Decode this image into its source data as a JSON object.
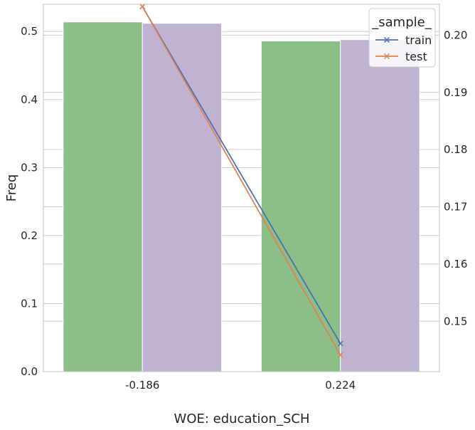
{
  "chart_data": {
    "type": "bar",
    "categories": [
      "-0.186",
      "0.224"
    ],
    "xlabel": "WOE: education_SCH",
    "ylabel": "Freq",
    "ylim": [
      0,
      0.54
    ],
    "yticks": [
      "0.0",
      "0.1",
      "0.2",
      "0.3",
      "0.4",
      "0.5"
    ],
    "bar_series": [
      {
        "values": [
          0.514,
          0.486
        ],
        "color": "#8bbf87"
      },
      {
        "values": [
          0.512,
          0.488
        ],
        "color": "#c0b3d1"
      }
    ],
    "y2lim": [
      0.1412,
      0.2054
    ],
    "y2ticks": [
      "0.15",
      "0.16",
      "0.17",
      "0.18",
      "0.19",
      "0.20"
    ],
    "line_series": [
      {
        "name": "train",
        "values": [
          0.205,
          0.1461
        ],
        "color": "#4c72b0"
      },
      {
        "name": "test",
        "values": [
          0.205,
          0.1441
        ],
        "color": "#dd8452"
      }
    ],
    "legend": {
      "title": "_sample_",
      "position": "top-right"
    },
    "grid": true
  }
}
